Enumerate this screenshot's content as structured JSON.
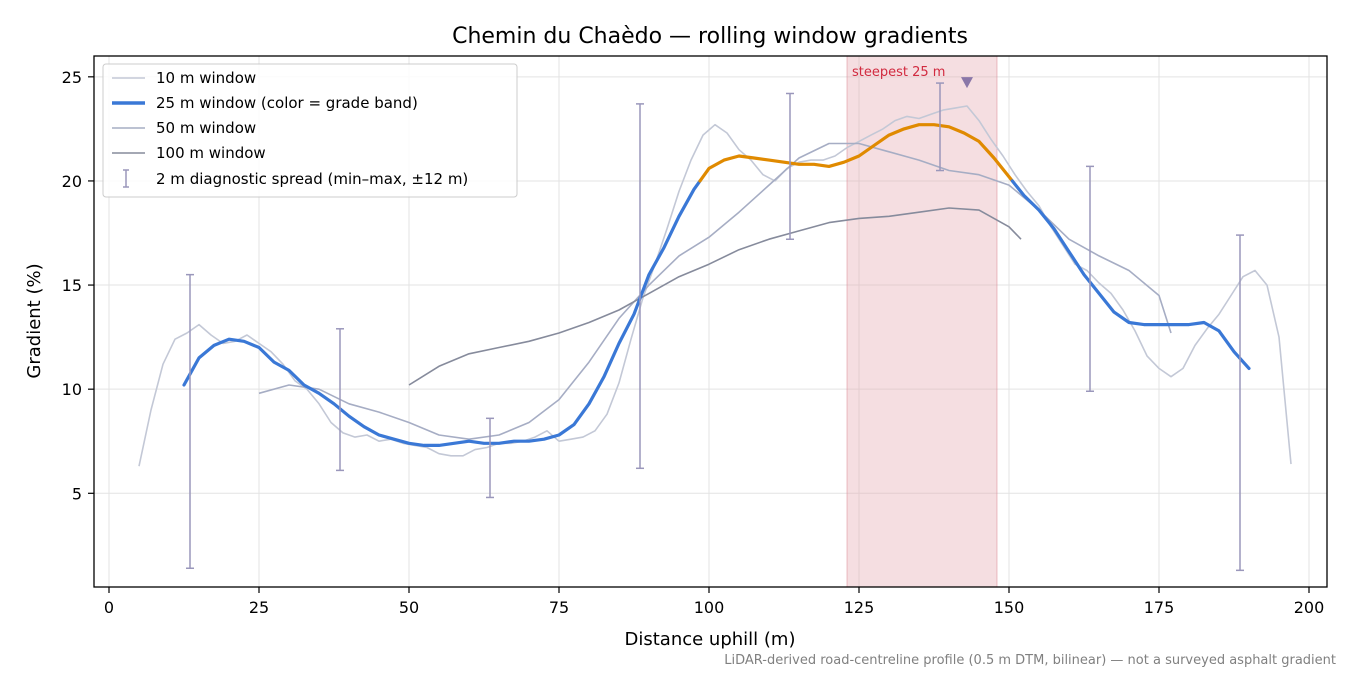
{
  "chart_data": {
    "type": "line",
    "title": "Chemin du Chaèdo — rolling window gradients",
    "xlabel": "Distance uphill (m)",
    "ylabel": "Gradient (%)",
    "footnote": "LiDAR-derived road-centreline profile (0.5 m DTM, bilinear) — not a surveyed asphalt gradient",
    "xlim": [
      -2.5,
      203
    ],
    "ylim": [
      0.5,
      26
    ],
    "xticks": [
      0,
      25,
      50,
      75,
      100,
      125,
      150,
      175,
      200
    ],
    "yticks": [
      5,
      10,
      15,
      20,
      25
    ],
    "grid": true,
    "legend_position": "top-left",
    "colors": {
      "w10": "#c3c8d6",
      "w25_blue": "#3a78d6",
      "w25_orange": "#e08a00",
      "w50": "#a6adc4",
      "w100": "#868b9c",
      "spread": "#9a97bb",
      "highlight": "#e6adb5",
      "annotation": "#d12a3f",
      "marker": "#8a77a8"
    },
    "series": [
      {
        "name": "10 m window",
        "x": [
          5,
          7,
          9,
          11,
          13,
          15,
          17,
          19,
          21,
          23,
          25,
          27,
          29,
          31,
          33,
          35,
          37,
          39,
          41,
          43,
          45,
          47,
          49,
          51,
          53,
          55,
          57,
          59,
          61,
          63,
          65,
          67,
          69,
          71,
          73,
          75,
          77,
          79,
          81,
          83,
          85,
          87,
          89,
          91,
          93,
          95,
          97,
          99,
          101,
          103,
          105,
          107,
          109,
          111,
          113,
          115,
          117,
          119,
          121,
          123,
          125,
          127,
          129,
          131,
          133,
          135,
          137,
          139,
          141,
          143,
          145,
          147,
          149,
          151,
          153,
          155,
          157,
          159,
          161,
          163,
          165,
          167,
          169,
          171,
          173,
          175,
          177,
          179,
          181,
          183,
          185,
          187,
          189,
          191,
          193,
          195,
          197
        ],
        "values": [
          6.3,
          9.0,
          11.2,
          12.4,
          12.7,
          13.1,
          12.6,
          12.2,
          12.3,
          12.6,
          12.2,
          11.8,
          11.2,
          10.4,
          10.0,
          9.3,
          8.4,
          7.9,
          7.7,
          7.8,
          7.5,
          7.6,
          7.4,
          7.3,
          7.2,
          6.9,
          6.8,
          6.8,
          7.1,
          7.2,
          7.4,
          7.4,
          7.5,
          7.7,
          8.0,
          7.5,
          7.6,
          7.7,
          8.0,
          8.8,
          10.3,
          12.4,
          14.4,
          16.0,
          17.7,
          19.5,
          21.0,
          22.2,
          22.7,
          22.3,
          21.5,
          21.0,
          20.3,
          20.0,
          20.6,
          20.9,
          21.0,
          21.0,
          21.2,
          21.6,
          21.9,
          22.2,
          22.5,
          22.9,
          23.1,
          23.0,
          23.2,
          23.4,
          23.5,
          23.6,
          22.9,
          22.0,
          21.2,
          20.3,
          19.5,
          18.8,
          17.8,
          16.9,
          16.0,
          15.7,
          15.1,
          14.6,
          13.8,
          12.8,
          11.6,
          11.0,
          10.6,
          11.0,
          12.1,
          12.9,
          13.6,
          14.5,
          15.4,
          15.7,
          15.0,
          12.5,
          6.4
        ]
      },
      {
        "name": "25 m window (color = grade band)",
        "x": [
          12.5,
          15,
          17.5,
          20,
          22.5,
          25,
          27.5,
          30,
          32.5,
          35,
          37.5,
          40,
          42.5,
          45,
          47.5,
          50,
          52.5,
          55,
          57.5,
          60,
          62.5,
          65,
          67.5,
          70,
          72.5,
          75,
          77.5,
          80,
          82.5,
          85,
          87.5,
          90,
          92.5,
          95,
          97.5,
          100,
          102.5,
          105,
          107.5,
          110,
          112.5,
          115,
          117.5,
          120,
          122.5,
          125,
          127.5,
          130,
          132.5,
          135,
          137.5,
          140,
          142.5,
          145,
          147.5,
          150,
          152.5,
          155,
          157.5,
          160,
          162.5,
          165,
          167.5,
          170,
          172.5,
          175,
          177.5,
          180,
          182.5,
          185,
          187.5,
          190
        ],
        "values": [
          10.2,
          11.5,
          12.1,
          12.4,
          12.3,
          12.0,
          11.3,
          10.9,
          10.2,
          9.8,
          9.3,
          8.7,
          8.2,
          7.8,
          7.6,
          7.4,
          7.3,
          7.3,
          7.4,
          7.5,
          7.4,
          7.4,
          7.5,
          7.5,
          7.6,
          7.8,
          8.3,
          9.3,
          10.6,
          12.2,
          13.6,
          15.5,
          16.8,
          18.3,
          19.6,
          20.6,
          21.0,
          21.2,
          21.1,
          21.0,
          20.9,
          20.8,
          20.8,
          20.7,
          20.9,
          21.2,
          21.7,
          22.2,
          22.5,
          22.7,
          22.7,
          22.6,
          22.3,
          21.9,
          21.1,
          20.2,
          19.3,
          18.6,
          17.7,
          16.6,
          15.5,
          14.6,
          13.7,
          13.2,
          13.1,
          13.1,
          13.1,
          13.1,
          13.2,
          12.8,
          11.8,
          11.0
        ]
      },
      {
        "name": "50 m window",
        "x": [
          25,
          30,
          35,
          40,
          45,
          50,
          55,
          60,
          65,
          70,
          75,
          80,
          85,
          90,
          95,
          100,
          105,
          110,
          115,
          120,
          125,
          130,
          135,
          140,
          145,
          150,
          155,
          160,
          165,
          170,
          175,
          177
        ],
        "values": [
          9.8,
          10.2,
          10.0,
          9.3,
          8.9,
          8.4,
          7.8,
          7.6,
          7.8,
          8.4,
          9.5,
          11.3,
          13.4,
          15.0,
          16.4,
          17.3,
          18.5,
          19.8,
          21.1,
          21.8,
          21.8,
          21.4,
          21.0,
          20.5,
          20.3,
          19.8,
          18.6,
          17.2,
          16.4,
          15.7,
          14.5,
          12.7
        ]
      },
      {
        "name": "100 m window",
        "x": [
          50,
          55,
          60,
          65,
          70,
          75,
          80,
          85,
          90,
          95,
          100,
          105,
          110,
          115,
          120,
          125,
          130,
          135,
          140,
          145,
          150,
          152
        ],
        "values": [
          10.2,
          11.1,
          11.7,
          12.0,
          12.3,
          12.7,
          13.2,
          13.8,
          14.6,
          15.4,
          16.0,
          16.7,
          17.2,
          17.6,
          18.0,
          18.2,
          18.3,
          18.5,
          18.7,
          18.6,
          17.8,
          17.2
        ]
      }
    ],
    "spread": {
      "name": "2 m diagnostic spread (min–max, ±12 m)",
      "x": [
        13.5,
        38.5,
        63.5,
        88.5,
        113.5,
        138.5,
        163.5,
        188.5
      ],
      "min": [
        1.4,
        6.1,
        4.8,
        6.2,
        17.2,
        20.5,
        9.9,
        1.3
      ],
      "max": [
        15.5,
        12.9,
        8.6,
        23.7,
        24.2,
        24.7,
        20.7,
        17.4
      ]
    },
    "highlight": {
      "x_start": 123,
      "x_end": 148,
      "label": "steepest 25 m",
      "marker_x": 143,
      "marker_y": 24.7
    },
    "grade_band_threshold": 20
  }
}
